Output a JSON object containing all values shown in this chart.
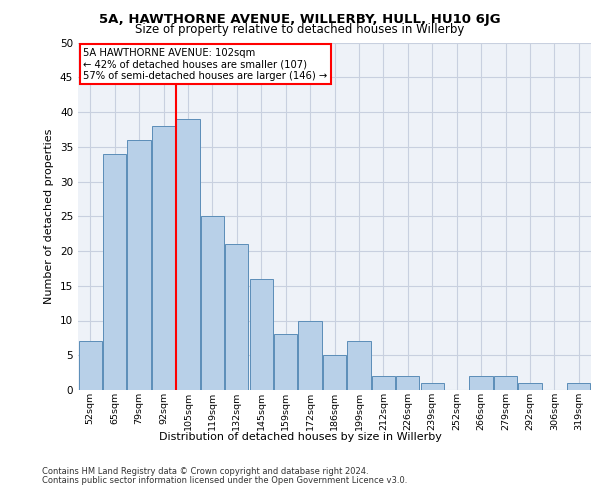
{
  "title": "5A, HAWTHORNE AVENUE, WILLERBY, HULL, HU10 6JG",
  "subtitle": "Size of property relative to detached houses in Willerby",
  "xlabel": "Distribution of detached houses by size in Willerby",
  "ylabel": "Number of detached properties",
  "bar_values": [
    7,
    34,
    36,
    38,
    39,
    25,
    21,
    16,
    8,
    10,
    5,
    7,
    2,
    2,
    1,
    0,
    2,
    2,
    1,
    0,
    1
  ],
  "categories": [
    "52sqm",
    "65sqm",
    "79sqm",
    "92sqm",
    "105sqm",
    "119sqm",
    "132sqm",
    "145sqm",
    "159sqm",
    "172sqm",
    "186sqm",
    "199sqm",
    "212sqm",
    "226sqm",
    "239sqm",
    "252sqm",
    "266sqm",
    "279sqm",
    "292sqm",
    "306sqm",
    "319sqm"
  ],
  "bar_color": "#b8d0e8",
  "bar_edge_color": "#5b8db8",
  "vline_x": 3.5,
  "annotation_text_line1": "5A HAWTHORNE AVENUE: 102sqm",
  "annotation_text_line2": "← 42% of detached houses are smaller (107)",
  "annotation_text_line3": "57% of semi-detached houses are larger (146) →",
  "annotation_box_color": "white",
  "annotation_box_edge_color": "red",
  "vline_color": "red",
  "ylim": [
    0,
    50
  ],
  "yticks": [
    0,
    5,
    10,
    15,
    20,
    25,
    30,
    35,
    40,
    45,
    50
  ],
  "footer_line1": "Contains HM Land Registry data © Crown copyright and database right 2024.",
  "footer_line2": "Contains public sector information licensed under the Open Government Licence v3.0.",
  "bg_color": "#eef2f8",
  "fig_bg_color": "#ffffff",
  "grid_color": "#c8d0df"
}
